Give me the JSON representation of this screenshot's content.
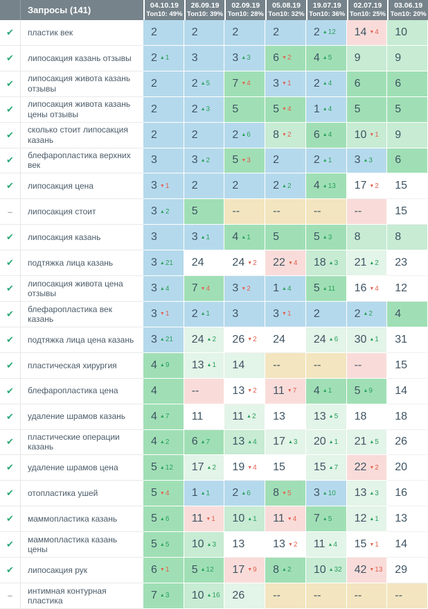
{
  "header": {
    "queries_label": "Запросы (141)",
    "columns": [
      {
        "date": "04.10.19",
        "top10": "Топ10: 49%"
      },
      {
        "date": "26.09.19",
        "top10": "Топ10: 39%"
      },
      {
        "date": "02.09.19",
        "top10": "Топ10: 28%"
      },
      {
        "date": "05.08.19",
        "top10": "Топ10: 32%"
      },
      {
        "date": "19.07.19",
        "top10": "Топ10: 36%"
      },
      {
        "date": "02.07.19",
        "top10": "Топ10: 25%"
      },
      {
        "date": "03.06.19",
        "top10": "Топ10: 20%"
      }
    ]
  },
  "icons": {
    "active": "✔",
    "paused": "–"
  },
  "palette": {
    "header_bg": "#76838b",
    "top3_blue": "#b5d9ec",
    "top7_green": "#a0dfb5",
    "top10_lightgreen": "#c7ebd3",
    "improved_palegreen": "#e3f4e8",
    "declined_pink": "#f9dcd9",
    "missing_beige": "#f3e5bf",
    "delta_up": "#2aa05c",
    "delta_down": "#e0614f",
    "check_green": "#27a874"
  },
  "rows": [
    {
      "keyword": "пластик век",
      "status": "check",
      "cells": [
        {
          "v": "2",
          "bg": "blue"
        },
        {
          "v": "2",
          "bg": "blue"
        },
        {
          "v": "2",
          "bg": "blue"
        },
        {
          "v": "2",
          "bg": "blue"
        },
        {
          "v": "2",
          "d": "12",
          "dir": "up",
          "bg": "blue"
        },
        {
          "v": "14",
          "d": "4",
          "dir": "down",
          "bg": "pink"
        },
        {
          "v": "10",
          "bg": "lightgreen"
        }
      ]
    },
    {
      "keyword": "липосакция казань отзывы",
      "status": "check",
      "cells": [
        {
          "v": "2",
          "d": "1",
          "dir": "up",
          "bg": "blue"
        },
        {
          "v": "3",
          "bg": "blue"
        },
        {
          "v": "3",
          "d": "3",
          "dir": "up",
          "bg": "blue"
        },
        {
          "v": "6",
          "d": "2",
          "dir": "down",
          "bg": "green"
        },
        {
          "v": "4",
          "d": "5",
          "dir": "up",
          "bg": "green"
        },
        {
          "v": "9",
          "bg": "lightgreen"
        },
        {
          "v": "9",
          "bg": "lightgreen"
        }
      ]
    },
    {
      "keyword": "липосакция живота казань отзывы",
      "status": "check",
      "cells": [
        {
          "v": "2",
          "bg": "blue"
        },
        {
          "v": "2",
          "d": "5",
          "dir": "up",
          "bg": "blue"
        },
        {
          "v": "7",
          "d": "4",
          "dir": "down",
          "bg": "green"
        },
        {
          "v": "3",
          "d": "1",
          "dir": "down",
          "bg": "blue"
        },
        {
          "v": "2",
          "d": "4",
          "dir": "up",
          "bg": "blue"
        },
        {
          "v": "6",
          "bg": "green"
        },
        {
          "v": "6",
          "bg": "green"
        }
      ]
    },
    {
      "keyword": "липосакция живота казань цены отзывы",
      "status": "check",
      "cells": [
        {
          "v": "2",
          "bg": "blue"
        },
        {
          "v": "2",
          "d": "3",
          "dir": "up",
          "bg": "blue"
        },
        {
          "v": "5",
          "bg": "green"
        },
        {
          "v": "5",
          "d": "4",
          "dir": "down",
          "bg": "green"
        },
        {
          "v": "1",
          "d": "4",
          "dir": "up",
          "bg": "blue"
        },
        {
          "v": "5",
          "bg": "green"
        },
        {
          "v": "5",
          "bg": "green"
        }
      ]
    },
    {
      "keyword": "сколько стоит липосакция казань",
      "status": "check",
      "cells": [
        {
          "v": "2",
          "bg": "blue"
        },
        {
          "v": "2",
          "bg": "blue"
        },
        {
          "v": "2",
          "d": "6",
          "dir": "up",
          "bg": "blue"
        },
        {
          "v": "8",
          "d": "2",
          "dir": "down",
          "bg": "lightgreen"
        },
        {
          "v": "6",
          "d": "4",
          "dir": "up",
          "bg": "green"
        },
        {
          "v": "10",
          "d": "1",
          "dir": "down",
          "bg": "lightgreen"
        },
        {
          "v": "9",
          "bg": "lightgreen"
        }
      ]
    },
    {
      "keyword": "блефаропластика верхних век",
      "status": "check",
      "cells": [
        {
          "v": "3",
          "bg": "blue"
        },
        {
          "v": "3",
          "d": "2",
          "dir": "up",
          "bg": "blue"
        },
        {
          "v": "5",
          "d": "3",
          "dir": "down",
          "bg": "green"
        },
        {
          "v": "2",
          "bg": "blue"
        },
        {
          "v": "2",
          "d": "1",
          "dir": "up",
          "bg": "blue"
        },
        {
          "v": "3",
          "d": "3",
          "dir": "up",
          "bg": "blue"
        },
        {
          "v": "6",
          "bg": "green"
        }
      ]
    },
    {
      "keyword": "липосакция цена",
      "status": "check",
      "cells": [
        {
          "v": "3",
          "d": "1",
          "dir": "down",
          "bg": "blue"
        },
        {
          "v": "2",
          "bg": "blue"
        },
        {
          "v": "2",
          "bg": "blue"
        },
        {
          "v": "2",
          "d": "2",
          "dir": "up",
          "bg": "blue"
        },
        {
          "v": "4",
          "d": "13",
          "dir": "up",
          "bg": "green"
        },
        {
          "v": "17",
          "d": "2",
          "dir": "down",
          "bg": "white"
        },
        {
          "v": "15",
          "bg": "white"
        }
      ]
    },
    {
      "keyword": "липосакция стоит",
      "status": "dash",
      "cells": [
        {
          "v": "3",
          "d": "2",
          "dir": "up",
          "bg": "blue"
        },
        {
          "v": "5",
          "bg": "green"
        },
        {
          "v": "--",
          "bg": "beige"
        },
        {
          "v": "--",
          "bg": "beige"
        },
        {
          "v": "--",
          "bg": "beige"
        },
        {
          "v": "--",
          "bg": "pink"
        },
        {
          "v": "15",
          "bg": "white"
        }
      ]
    },
    {
      "keyword": "липосакция казань",
      "status": "check",
      "cells": [
        {
          "v": "3",
          "bg": "blue"
        },
        {
          "v": "3",
          "d": "1",
          "dir": "up",
          "bg": "blue"
        },
        {
          "v": "4",
          "d": "1",
          "dir": "up",
          "bg": "green"
        },
        {
          "v": "5",
          "bg": "green"
        },
        {
          "v": "5",
          "d": "3",
          "dir": "up",
          "bg": "green"
        },
        {
          "v": "8",
          "bg": "lightgreen"
        },
        {
          "v": "8",
          "bg": "lightgreen"
        }
      ]
    },
    {
      "keyword": "подтяжка лица казань",
      "status": "check",
      "cells": [
        {
          "v": "3",
          "d": "21",
          "dir": "up",
          "bg": "blue"
        },
        {
          "v": "24",
          "bg": "white"
        },
        {
          "v": "24",
          "d": "2",
          "dir": "down",
          "bg": "white"
        },
        {
          "v": "22",
          "d": "4",
          "dir": "down",
          "bg": "pink"
        },
        {
          "v": "18",
          "d": "3",
          "dir": "up",
          "bg": "lightgreen"
        },
        {
          "v": "21",
          "d": "2",
          "dir": "up",
          "bg": "palegreen"
        },
        {
          "v": "23",
          "bg": "white"
        }
      ]
    },
    {
      "keyword": "липосакция живота цена отзывы",
      "status": "check",
      "cells": [
        {
          "v": "3",
          "d": "4",
          "dir": "up",
          "bg": "blue"
        },
        {
          "v": "7",
          "d": "4",
          "dir": "down",
          "bg": "green"
        },
        {
          "v": "3",
          "d": "2",
          "dir": "down",
          "bg": "blue"
        },
        {
          "v": "1",
          "d": "4",
          "dir": "up",
          "bg": "blue"
        },
        {
          "v": "5",
          "d": "11",
          "dir": "up",
          "bg": "green"
        },
        {
          "v": "16",
          "d": "4",
          "dir": "down",
          "bg": "white"
        },
        {
          "v": "12",
          "bg": "white"
        }
      ]
    },
    {
      "keyword": "блефаропластика век казань",
      "status": "check",
      "cells": [
        {
          "v": "3",
          "d": "1",
          "dir": "down",
          "bg": "blue"
        },
        {
          "v": "2",
          "d": "1",
          "dir": "up",
          "bg": "blue"
        },
        {
          "v": "3",
          "bg": "blue"
        },
        {
          "v": "3",
          "d": "1",
          "dir": "down",
          "bg": "blue"
        },
        {
          "v": "2",
          "bg": "blue"
        },
        {
          "v": "2",
          "d": "2",
          "dir": "up",
          "bg": "blue"
        },
        {
          "v": "4",
          "bg": "green"
        }
      ]
    },
    {
      "keyword": "подтяжка лица цена казань",
      "status": "check",
      "cells": [
        {
          "v": "3",
          "d": "21",
          "dir": "up",
          "bg": "blue"
        },
        {
          "v": "24",
          "d": "2",
          "dir": "up",
          "bg": "palegreen"
        },
        {
          "v": "26",
          "d": "2",
          "dir": "down",
          "bg": "white"
        },
        {
          "v": "24",
          "bg": "white"
        },
        {
          "v": "24",
          "d": "6",
          "dir": "up",
          "bg": "palegreen"
        },
        {
          "v": "30",
          "d": "1",
          "dir": "up",
          "bg": "palegreen"
        },
        {
          "v": "31",
          "bg": "white"
        }
      ]
    },
    {
      "keyword": "пластическая хирургия",
      "status": "check",
      "cells": [
        {
          "v": "4",
          "d": "9",
          "dir": "up",
          "bg": "green"
        },
        {
          "v": "13",
          "d": "1",
          "dir": "up",
          "bg": "palegreen"
        },
        {
          "v": "14",
          "bg": "palegreen"
        },
        {
          "v": "--",
          "bg": "beige"
        },
        {
          "v": "--",
          "bg": "beige"
        },
        {
          "v": "--",
          "bg": "pink"
        },
        {
          "v": "15",
          "bg": "white"
        }
      ]
    },
    {
      "keyword": "блефаропластика цена",
      "status": "check",
      "cells": [
        {
          "v": "4",
          "bg": "green"
        },
        {
          "v": "--",
          "bg": "pink"
        },
        {
          "v": "13",
          "d": "2",
          "dir": "down",
          "bg": "white"
        },
        {
          "v": "11",
          "d": "7",
          "dir": "down",
          "bg": "pink"
        },
        {
          "v": "4",
          "d": "1",
          "dir": "up",
          "bg": "green"
        },
        {
          "v": "5",
          "d": "9",
          "dir": "up",
          "bg": "green"
        },
        {
          "v": "14",
          "bg": "white"
        }
      ]
    },
    {
      "keyword": "удаление шрамов казань",
      "status": "check",
      "cells": [
        {
          "v": "4",
          "d": "7",
          "dir": "up",
          "bg": "green"
        },
        {
          "v": "11",
          "bg": "white"
        },
        {
          "v": "11",
          "d": "2",
          "dir": "up",
          "bg": "palegreen"
        },
        {
          "v": "13",
          "bg": "white"
        },
        {
          "v": "13",
          "d": "5",
          "dir": "up",
          "bg": "palegreen"
        },
        {
          "v": "18",
          "bg": "white"
        },
        {
          "v": "18",
          "bg": "white"
        }
      ]
    },
    {
      "keyword": "пластические операции казань",
      "status": "check",
      "cells": [
        {
          "v": "4",
          "d": "2",
          "dir": "up",
          "bg": "green"
        },
        {
          "v": "6",
          "d": "7",
          "dir": "up",
          "bg": "green"
        },
        {
          "v": "13",
          "d": "4",
          "dir": "up",
          "bg": "lightgreen"
        },
        {
          "v": "17",
          "d": "3",
          "dir": "up",
          "bg": "palegreen"
        },
        {
          "v": "20",
          "d": "1",
          "dir": "up",
          "bg": "palegreen"
        },
        {
          "v": "21",
          "d": "5",
          "dir": "up",
          "bg": "palegreen"
        },
        {
          "v": "26",
          "bg": "white"
        }
      ]
    },
    {
      "keyword": "удаление шрамов цена",
      "status": "check",
      "cells": [
        {
          "v": "5",
          "d": "12",
          "dir": "up",
          "bg": "green"
        },
        {
          "v": "17",
          "d": "2",
          "dir": "up",
          "bg": "palegreen"
        },
        {
          "v": "19",
          "d": "4",
          "dir": "down",
          "bg": "white"
        },
        {
          "v": "15",
          "bg": "white"
        },
        {
          "v": "15",
          "d": "7",
          "dir": "up",
          "bg": "palegreen"
        },
        {
          "v": "22",
          "d": "2",
          "dir": "down",
          "bg": "pink"
        },
        {
          "v": "20",
          "bg": "white"
        }
      ]
    },
    {
      "keyword": "отопластика ушей",
      "status": "check",
      "cells": [
        {
          "v": "5",
          "d": "4",
          "dir": "down",
          "bg": "green"
        },
        {
          "v": "1",
          "d": "1",
          "dir": "up",
          "bg": "blue"
        },
        {
          "v": "2",
          "d": "6",
          "dir": "up",
          "bg": "blue"
        },
        {
          "v": "8",
          "d": "5",
          "dir": "down",
          "bg": "green"
        },
        {
          "v": "3",
          "d": "10",
          "dir": "up",
          "bg": "blue"
        },
        {
          "v": "13",
          "d": "3",
          "dir": "up",
          "bg": "palegreen"
        },
        {
          "v": "16",
          "bg": "white"
        }
      ]
    },
    {
      "keyword": "маммопластика казань",
      "status": "check",
      "cells": [
        {
          "v": "5",
          "d": "6",
          "dir": "up",
          "bg": "green"
        },
        {
          "v": "11",
          "d": "1",
          "dir": "down",
          "bg": "pink"
        },
        {
          "v": "10",
          "d": "1",
          "dir": "up",
          "bg": "lightgreen"
        },
        {
          "v": "11",
          "d": "4",
          "dir": "down",
          "bg": "pink"
        },
        {
          "v": "7",
          "d": "5",
          "dir": "up",
          "bg": "green"
        },
        {
          "v": "12",
          "d": "1",
          "dir": "up",
          "bg": "palegreen"
        },
        {
          "v": "13",
          "bg": "white"
        }
      ]
    },
    {
      "keyword": "маммопластика казань цены",
      "status": "check",
      "cells": [
        {
          "v": "5",
          "d": "5",
          "dir": "up",
          "bg": "green"
        },
        {
          "v": "10",
          "d": "3",
          "dir": "up",
          "bg": "lightgreen"
        },
        {
          "v": "13",
          "bg": "white"
        },
        {
          "v": "13",
          "d": "2",
          "dir": "down",
          "bg": "white"
        },
        {
          "v": "11",
          "d": "4",
          "dir": "up",
          "bg": "palegreen"
        },
        {
          "v": "15",
          "d": "1",
          "dir": "down",
          "bg": "white"
        },
        {
          "v": "14",
          "bg": "white"
        }
      ]
    },
    {
      "keyword": "липосакция рук",
      "status": "check",
      "cells": [
        {
          "v": "6",
          "d": "1",
          "dir": "down",
          "bg": "green"
        },
        {
          "v": "5",
          "d": "12",
          "dir": "up",
          "bg": "green"
        },
        {
          "v": "17",
          "d": "9",
          "dir": "down",
          "bg": "pink"
        },
        {
          "v": "8",
          "d": "2",
          "dir": "up",
          "bg": "green"
        },
        {
          "v": "10",
          "d": "32",
          "dir": "up",
          "bg": "lightgreen"
        },
        {
          "v": "42",
          "d": "13",
          "dir": "down",
          "bg": "pink"
        },
        {
          "v": "29",
          "bg": "white"
        }
      ]
    },
    {
      "keyword": "интимная контурная пластика",
      "status": "dash",
      "cells": [
        {
          "v": "7",
          "d": "3",
          "dir": "up",
          "bg": "green"
        },
        {
          "v": "10",
          "d": "16",
          "dir": "up",
          "bg": "lightgreen"
        },
        {
          "v": "26",
          "bg": "palegreen"
        },
        {
          "v": "--",
          "bg": "beige"
        },
        {
          "v": "--",
          "bg": "beige"
        },
        {
          "v": "--",
          "bg": "beige"
        },
        {
          "v": "--",
          "bg": "beige"
        }
      ]
    }
  ]
}
